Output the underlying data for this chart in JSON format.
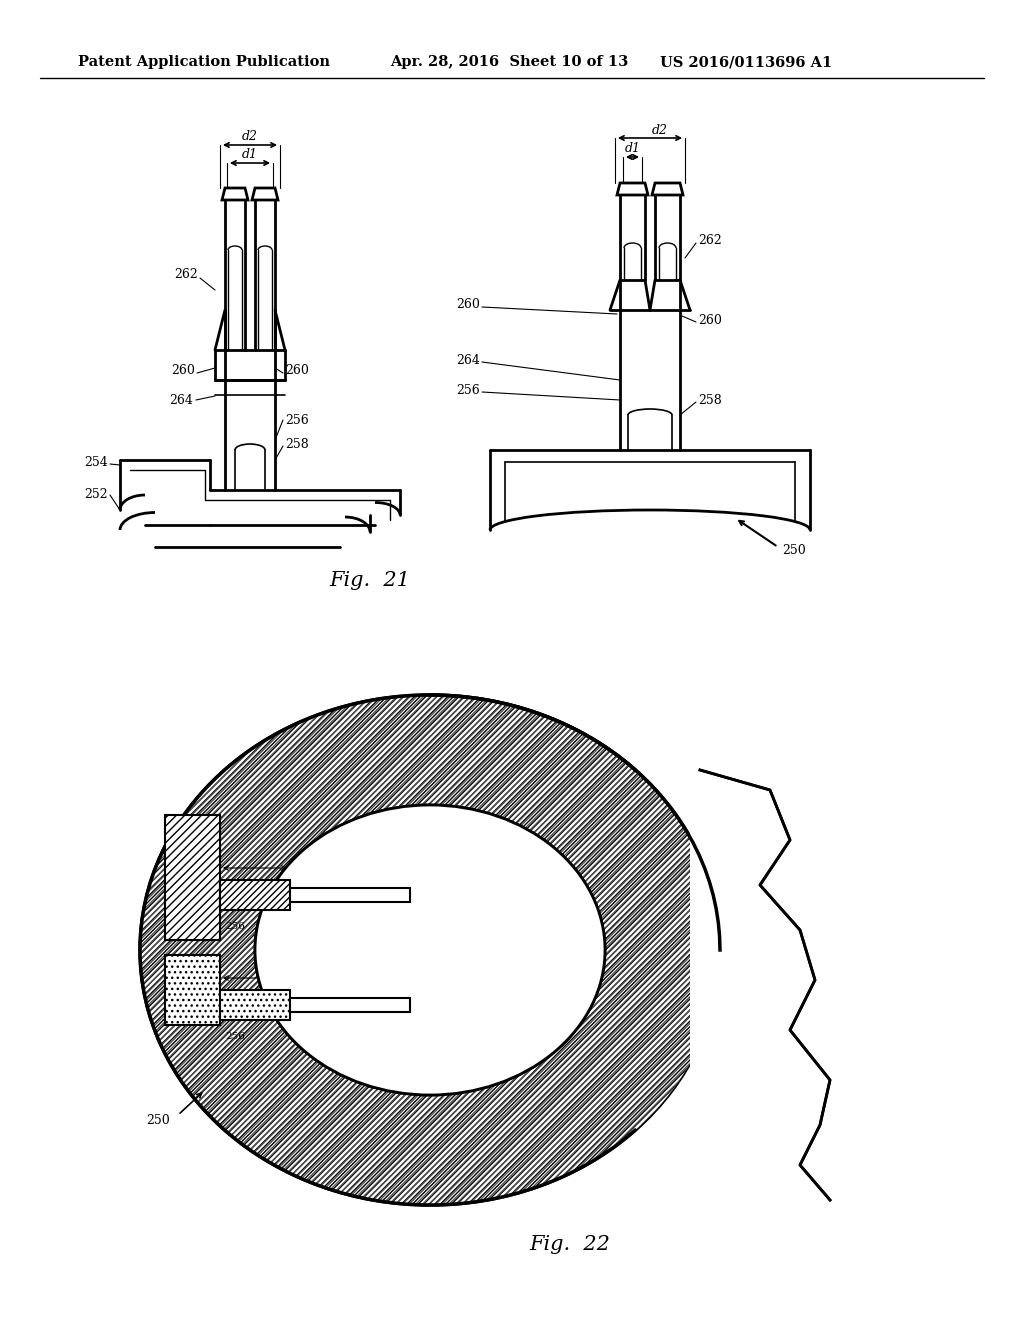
{
  "header_left": "Patent Application Publication",
  "header_mid": "Apr. 28, 2016  Sheet 10 of 13",
  "header_right": "US 2016/0113696 A1",
  "fig21_caption": "Fig.  21",
  "fig22_caption": "Fig.  22",
  "background_color": "#ffffff",
  "line_color": "#000000",
  "header_fontsize": 10.5,
  "caption_fontsize": 15
}
